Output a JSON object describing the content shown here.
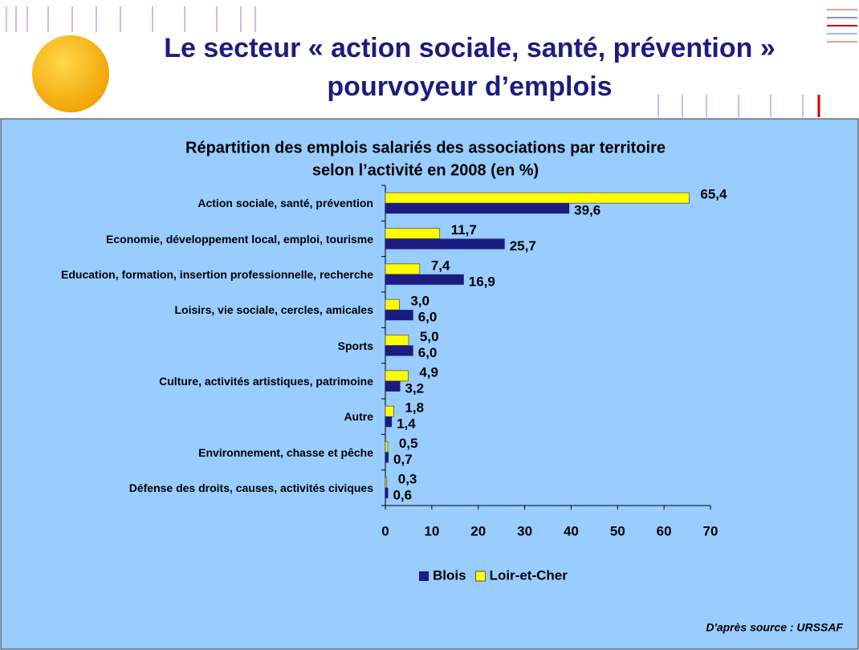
{
  "header": {
    "title": [
      "Le secteur « action sociale, santé, prévention »",
      "pourvoyeur d’emplois"
    ]
  },
  "chart_data": {
    "type": "hbar",
    "title": [
      "Répartition des emplois salariés des associations par territoire",
      "selon l’activité en 2008 (en %)"
    ],
    "categories": [
      "Action sociale, santé, prévention",
      "Economie, développement local, emploi, tourisme",
      "Education, formation, insertion professionnelle, recherche",
      "Loisirs, vie sociale, cercles, amicales",
      "Sports",
      "Culture, activités artistiques, patrimoine",
      "Autre",
      "Environnement, chasse et pêche",
      "Défense des droits, causes, activités civiques"
    ],
    "series": [
      {
        "name": "Blois",
        "color": "#1c1c80",
        "values": [
          39.6,
          25.7,
          16.9,
          6,
          6,
          3.2,
          1.4,
          0.7,
          0.6
        ],
        "value_labels": [
          "39,6",
          "25,7",
          "16,9",
          "6,0",
          "6,0",
          "3,2",
          "1,4",
          "0,7",
          "0,6"
        ]
      },
      {
        "name": "Loir-et-Cher",
        "color": "#ffff00",
        "values": [
          65.4,
          11.7,
          7.4,
          3,
          5,
          4.9,
          1.8,
          0.5,
          0.3
        ],
        "value_labels": [
          "65,4",
          "11,7",
          "7,4",
          "3,0",
          "5,0",
          "4,9",
          "1,8",
          "0,5",
          "0,3"
        ]
      }
    ],
    "xlim": [
      0,
      70
    ],
    "xticks": [
      0,
      10,
      20,
      30,
      40,
      50,
      60,
      70
    ],
    "legend": "bottom",
    "source": "D'après source : URSSAF"
  }
}
